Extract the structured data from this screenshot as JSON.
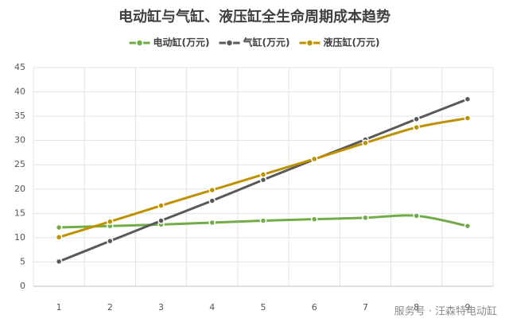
{
  "chart_data": {
    "type": "line",
    "title": "电动缸与气缸、液压缸全生命周期成本趋势",
    "categories": [
      "1",
      "2",
      "3",
      "4",
      "5",
      "6",
      "7",
      "8",
      "9"
    ],
    "series": [
      {
        "name": "电动缸(万元)",
        "color": "#70ad47",
        "values": [
          12.1,
          12.4,
          12.7,
          13.1,
          13.5,
          13.8,
          14.1,
          14.5,
          12.4
        ]
      },
      {
        "name": "气缸(万元)",
        "color": "#595959",
        "values": [
          5.1,
          9.3,
          13.5,
          17.6,
          21.9,
          26.1,
          30.2,
          34.4,
          38.5
        ]
      },
      {
        "name": "液压缸(万元)",
        "color": "#bf9000",
        "values": [
          10.1,
          13.3,
          16.6,
          19.8,
          23,
          26.2,
          29.5,
          32.7,
          34.6
        ]
      }
    ],
    "ylim": [
      0,
      45
    ],
    "yticks": [
      0,
      5,
      10,
      15,
      20,
      25,
      30,
      35,
      40,
      45
    ],
    "grid": true,
    "smooth": true,
    "legend": "top",
    "watermark": "服务号 · 汪森特电动缸"
  }
}
